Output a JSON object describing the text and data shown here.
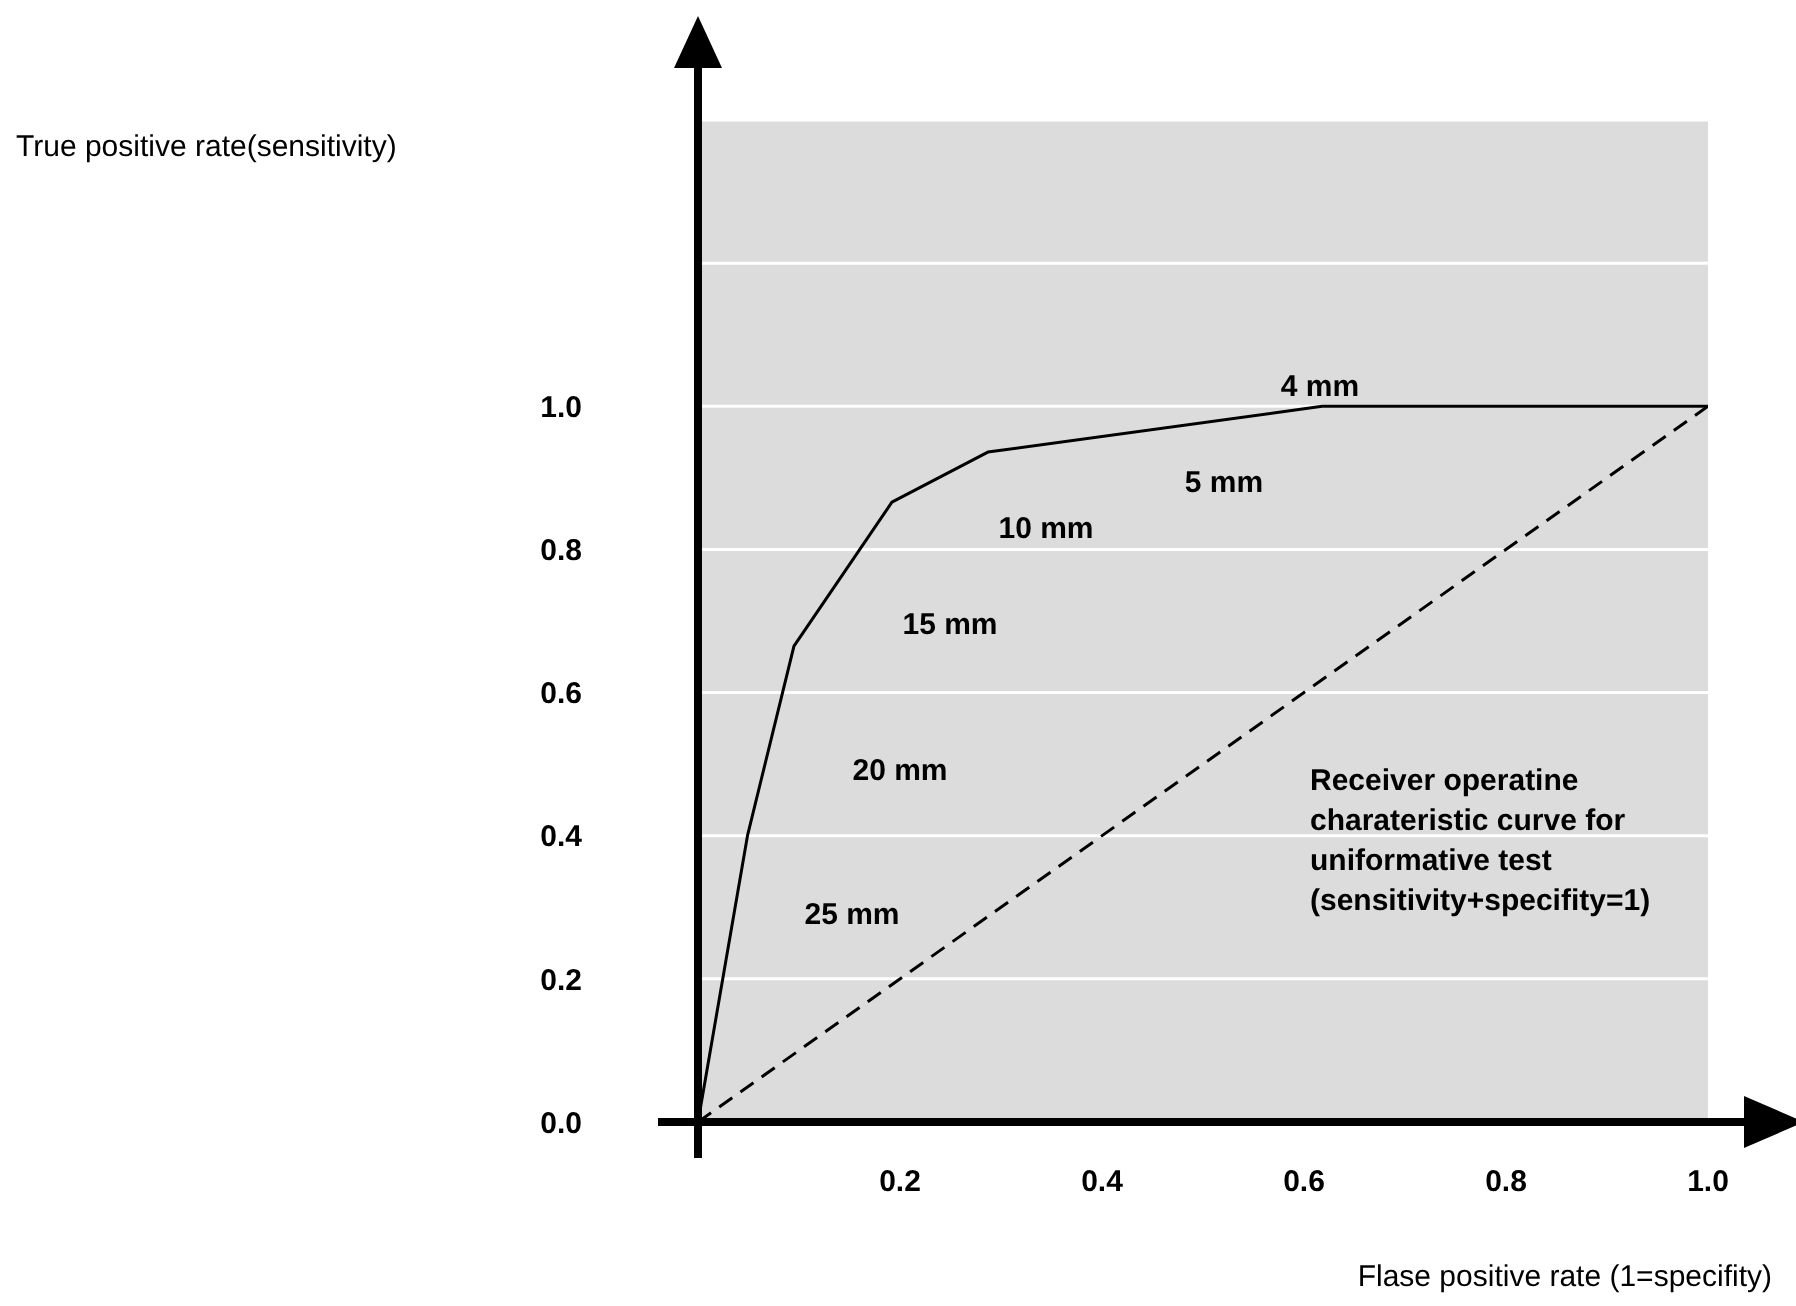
{
  "chart_data": {
    "type": "line",
    "xlabel": "Flase positive rate (1=specifity)",
    "ylabel": "True positive rate(sensitivity)",
    "series": [
      {
        "x": [
          0,
          0.049,
          0.095,
          0.192,
          0.287,
          0.618,
          1.0
        ],
        "values": [
          0,
          0.4,
          0.665,
          0.866,
          0.936,
          1.0,
          1.0
        ],
        "color": "#000000",
        "line_style": "solid"
      },
      {
        "x": [
          0,
          1.0
        ],
        "values": [
          0,
          1.0
        ],
        "color": "#000000",
        "line_style": "dashed"
      }
    ],
    "xlim": [
      0,
      1.0
    ],
    "xticks": [
      0.2,
      0.4,
      0.6,
      0.8,
      {
        "value": 1.0,
        "label": "1.0"
      }
    ],
    "ylim": [
      0,
      1.4
    ],
    "yticks": [
      {
        "value": 0,
        "label": "0.0"
      },
      0.2,
      0.4,
      0.6,
      0.8,
      {
        "value": 1.0,
        "label": "1.0"
      },
      {
        "value": 1.2,
        "label": null
      },
      {
        "value": 1.4,
        "label": null
      }
    ],
    "grid": "y",
    "marker": "none",
    "annotations": [
      "4 mm",
      "5 mm",
      "10 mm",
      "15 mm",
      "20 mm",
      "25 mm",
      "Receiver operatine\ncharateristic curve for\nuniformative test\n(sensitivity+specifity=1)"
    ]
  }
}
